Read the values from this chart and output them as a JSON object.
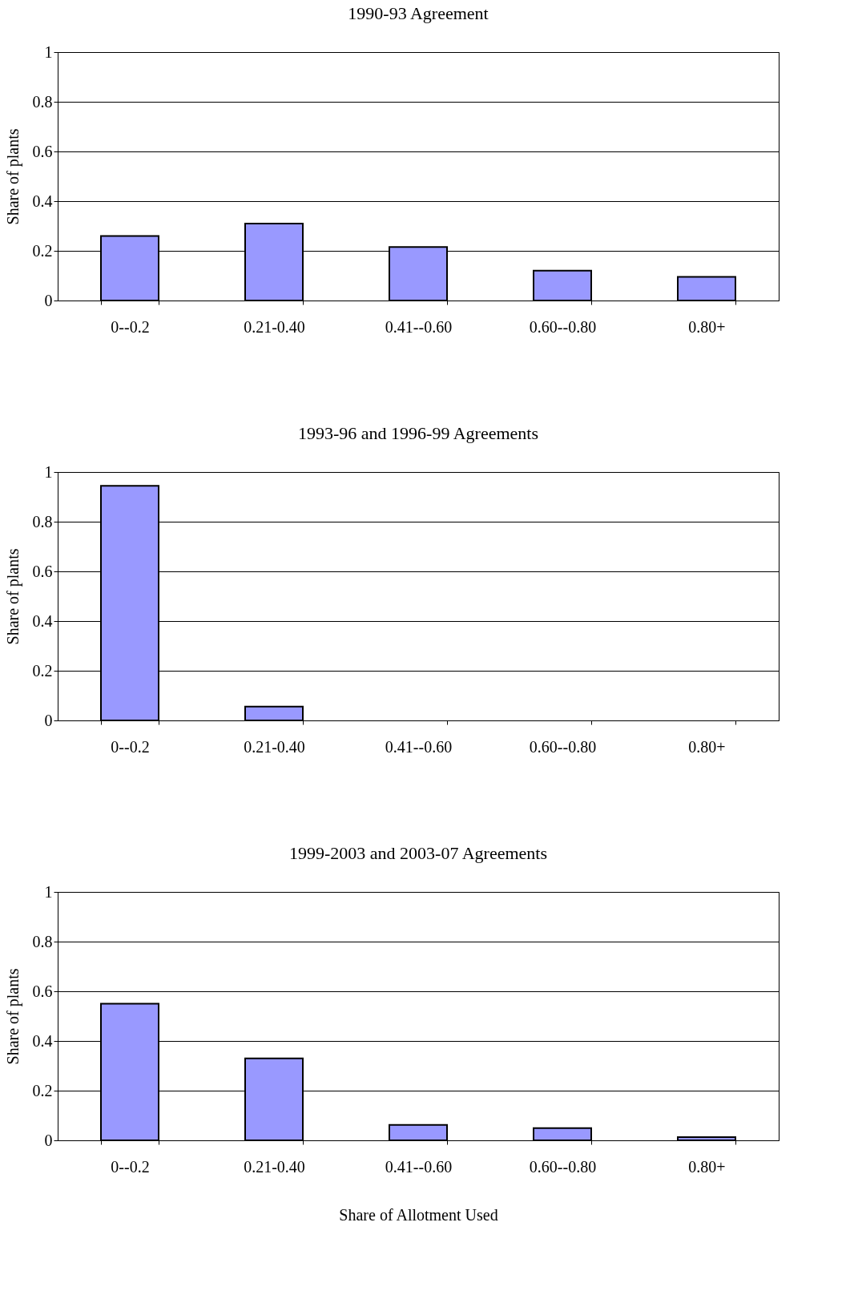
{
  "chart_data": [
    {
      "type": "bar",
      "title": "1990-93 Agreement",
      "ylabel": "Share of plants",
      "categories": [
        "0--0.2",
        "0.21-0.40",
        "0.41--0.60",
        "0.60--0.80",
        "0.80+"
      ],
      "values": [
        0.26,
        0.31,
        0.215,
        0.12,
        0.095
      ],
      "color": "#9999ff",
      "ylim": [
        0,
        1
      ],
      "yticks": [
        0,
        0.2,
        0.4,
        0.6,
        0.8,
        1
      ],
      "grid": "y"
    },
    {
      "type": "bar",
      "title": "1993-96 and 1996-99 Agreements",
      "ylabel": "Share of plants",
      "categories": [
        "0--0.2",
        "0.21-0.40",
        "0.41--0.60",
        "0.60--0.80",
        "0.80+"
      ],
      "values": [
        0.944,
        0.056,
        0,
        0,
        0
      ],
      "color": "#9999ff",
      "ylim": [
        0,
        1
      ],
      "yticks": [
        0,
        0.2,
        0.4,
        0.6,
        0.8,
        1
      ],
      "grid": "y"
    },
    {
      "type": "bar",
      "title": "1999-2003 and 2003-07 Agreements",
      "ylabel": "Share of plants",
      "xlabel": "Share of Allotment Used",
      "categories": [
        "0--0.2",
        "0.21-0.40",
        "0.41--0.60",
        "0.60--0.80",
        "0.80+"
      ],
      "values": [
        0.55,
        0.33,
        0.062,
        0.049,
        0.013
      ],
      "color": "#9999ff",
      "ylim": [
        0,
        1
      ],
      "yticks": [
        0,
        0.2,
        0.4,
        0.6,
        0.8,
        1
      ],
      "grid": "y"
    }
  ]
}
